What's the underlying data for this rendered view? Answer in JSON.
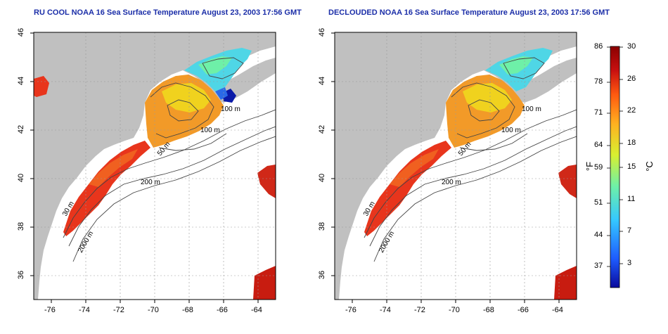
{
  "left_panel": {
    "title": "RU COOL NOAA 16 Sea Surface Temperature August 23, 2003 17:56 GMT"
  },
  "right_panel": {
    "title": "DECLOUDED NOAA 16 Sea Surface Temperature August 23, 2003 17:56 GMT"
  },
  "axes": {
    "lon_ticks": [
      "-76",
      "-74",
      "-72",
      "-70",
      "-68",
      "-66",
      "-64"
    ],
    "lat_ticks": [
      "46",
      "44",
      "42",
      "40",
      "38",
      "36"
    ]
  },
  "contours": {
    "label_100m": "100 m",
    "label_50m": "50 m",
    "label_200m": "200 m",
    "label_2000m": "2000 m",
    "label_30m": "30 m"
  },
  "colorbar": {
    "f_label": "°F",
    "c_label": "°C",
    "f_ticks": [
      "86",
      "78",
      "71",
      "64",
      "59",
      "51",
      "44",
      "37"
    ],
    "c_ticks": [
      "30",
      "26",
      "22",
      "18",
      "15",
      "11",
      "7",
      "3"
    ],
    "colors": [
      "#0a0a9c",
      "#1e5cff",
      "#35c8ff",
      "#6ef0a8",
      "#d8f030",
      "#ffb020",
      "#ff5a10",
      "#c81010",
      "#8a0000"
    ]
  },
  "map_colors": {
    "land": "#c0c0c0",
    "water": "#ffffff",
    "warm": "#e8351c",
    "orange": "#f29a28",
    "yellow": "#f0d21e",
    "cyan": "#4fd6e6",
    "blue": "#2a6ae8",
    "darkblue": "#0a1aa8"
  }
}
